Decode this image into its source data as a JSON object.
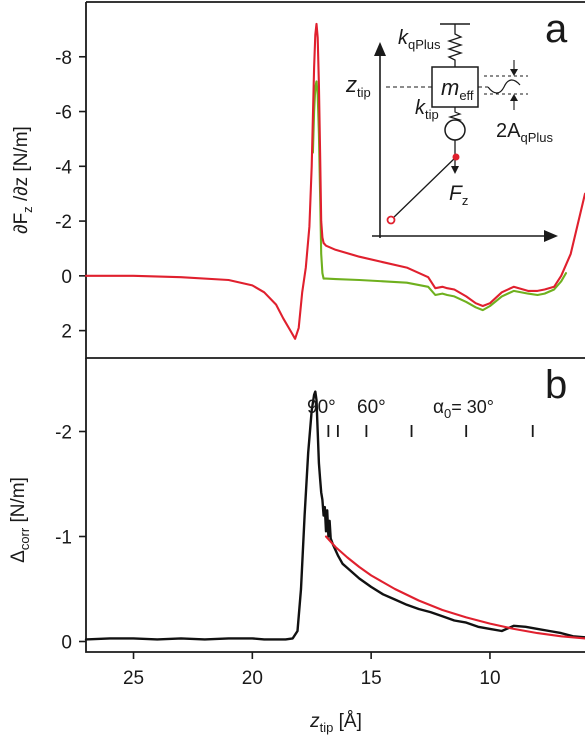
{
  "colors": {
    "red": "#e0202e",
    "green": "#6fb01e",
    "black": "#111111",
    "axis": "#1a1a1a"
  },
  "chart_data": [
    {
      "panel": "a",
      "type": "line",
      "ylabel_parts": {
        "p1": "∂F",
        "p1sub": "z",
        "p2": " /∂z [N/m]"
      },
      "xlim": [
        27,
        6
      ],
      "ylim": [
        3,
        -10
      ],
      "yticks": [
        2,
        0,
        -2,
        -4,
        -6,
        -8
      ],
      "ytick_labels": [
        "2",
        "0",
        "-2",
        "-4",
        "-6",
        "-8"
      ],
      "series": [
        {
          "color": "red",
          "x": [
            27,
            25,
            23,
            21,
            20,
            19.5,
            19,
            18.7,
            18.4,
            18.2,
            18.05,
            17.9,
            17.75,
            17.6,
            17.5,
            17.45,
            17.4,
            17.35,
            17.3,
            17.25,
            17.2,
            17.15,
            17.1,
            17.05,
            17.0,
            16.9,
            16.5,
            15.5,
            14.5,
            13.5,
            12.6,
            12.3,
            12.0,
            11.8,
            11.5,
            11.0,
            10.6,
            10.3,
            10.0,
            9.5,
            9.0,
            8.4,
            8.0,
            7.7,
            7.3,
            7.0,
            6.6,
            6.0
          ],
          "y": [
            0,
            0,
            0.05,
            0.15,
            0.35,
            0.6,
            1.05,
            1.55,
            2.0,
            2.3,
            1.9,
            0.6,
            -0.3,
            -1.8,
            -4.0,
            -5.8,
            -7.6,
            -8.8,
            -9.2,
            -8.7,
            -7.0,
            -4.5,
            -2.0,
            -1.4,
            -1.2,
            -1.1,
            -0.95,
            -0.7,
            -0.5,
            -0.3,
            0.05,
            0.45,
            0.4,
            0.45,
            0.5,
            0.75,
            1.0,
            1.1,
            1.0,
            0.6,
            0.4,
            0.55,
            0.55,
            0.5,
            0.4,
            0.0,
            -0.8,
            -3.0
          ]
        },
        {
          "color": "green",
          "x": [
            17.45,
            17.4,
            17.35,
            17.3,
            17.25,
            17.2,
            17.15,
            17.1,
            17.05,
            17.0,
            16.9,
            16.5,
            15.5,
            14.5,
            13.5,
            12.6,
            12.3,
            12.0,
            11.8,
            11.5,
            11.0,
            10.6,
            10.3,
            10.0,
            9.5,
            9.0,
            8.4,
            8.0,
            7.7,
            7.3,
            7.0,
            6.8
          ],
          "y": [
            -4.5,
            -6.0,
            -6.9,
            -7.1,
            -6.6,
            -5.2,
            -3.0,
            -0.8,
            -0.1,
            0.1,
            0.1,
            0.12,
            0.15,
            0.2,
            0.25,
            0.4,
            0.7,
            0.65,
            0.7,
            0.75,
            0.95,
            1.15,
            1.25,
            1.1,
            0.75,
            0.55,
            0.65,
            0.7,
            0.65,
            0.5,
            0.2,
            -0.1
          ]
        }
      ]
    },
    {
      "panel": "b",
      "type": "line",
      "ylabel_parts": {
        "p1": "Δ",
        "p1sub": "corr",
        "p2": " [N/m]"
      },
      "xlabel_parts": {
        "p1": "z",
        "p1sub": "tip",
        "p2": " [Å]"
      },
      "xlim": [
        27,
        6
      ],
      "ylim": [
        0.1,
        -2.7
      ],
      "yticks": [
        0,
        -1,
        -2
      ],
      "ytick_labels": [
        "0",
        "-1",
        "-2"
      ],
      "xticks": [
        25,
        20,
        15,
        10
      ],
      "xtick_labels": [
        "25",
        "20",
        "15",
        "10"
      ],
      "series": [
        {
          "color": "black",
          "x": [
            27,
            26,
            25,
            24,
            23,
            22,
            21,
            20,
            19.5,
            19,
            18.6,
            18.3,
            18.1,
            17.95,
            17.8,
            17.65,
            17.5,
            17.4,
            17.35,
            17.3,
            17.25,
            17.2,
            17.15,
            17.1,
            17.05,
            17.0,
            16.95,
            16.9,
            16.85,
            16.8,
            16.75,
            16.7,
            16.6,
            16.4,
            16.2,
            16.0,
            15.5,
            15.0,
            14.5,
            14.0,
            13.5,
            13.0,
            12.5,
            12.0,
            11.5,
            11.0,
            10.5,
            10.0,
            9.5,
            9.0,
            8.5,
            8.0,
            7.5,
            7.0,
            6.5,
            6.0
          ],
          "y": [
            -0.02,
            -0.03,
            -0.03,
            -0.02,
            -0.03,
            -0.02,
            -0.03,
            -0.03,
            -0.02,
            -0.02,
            -0.02,
            -0.03,
            -0.1,
            -0.5,
            -1.2,
            -1.8,
            -2.2,
            -2.35,
            -2.38,
            -2.3,
            -2.0,
            -1.7,
            -1.55,
            -1.42,
            -1.35,
            -1.2,
            -1.28,
            -1.05,
            -1.25,
            -1.0,
            -1.15,
            -0.98,
            -0.92,
            -0.82,
            -0.74,
            -0.7,
            -0.6,
            -0.52,
            -0.45,
            -0.4,
            -0.35,
            -0.31,
            -0.28,
            -0.24,
            -0.2,
            -0.18,
            -0.14,
            -0.12,
            -0.1,
            -0.15,
            -0.14,
            -0.12,
            -0.1,
            -0.08,
            -0.05,
            -0.04
          ]
        },
        {
          "color": "red",
          "x": [
            16.9,
            16.5,
            16.0,
            15.5,
            15.0,
            14.0,
            13.0,
            12.0,
            11.0,
            10.0,
            9.0,
            8.0,
            7.0,
            6.0
          ],
          "y": [
            -1.0,
            -0.9,
            -0.8,
            -0.71,
            -0.63,
            -0.5,
            -0.39,
            -0.3,
            -0.23,
            -0.17,
            -0.12,
            -0.08,
            -0.05,
            -0.03
          ]
        }
      ],
      "angle_marks": {
        "x": [
          16.8,
          16.4,
          15.2,
          13.3,
          11.0,
          8.2
        ],
        "label_90": "90°",
        "label_60": "60°",
        "alpha_main": "α",
        "alpha_sub": "0",
        "alpha_rest": "= 30°"
      }
    }
  ],
  "inset": {
    "k_qplus": {
      "main": "k",
      "sub": "qPlus"
    },
    "m_eff": {
      "main": "m",
      "sub": "eff"
    },
    "z_tip": {
      "main": "z",
      "sub": "tip"
    },
    "k_tip": {
      "main": "k",
      "sub": "tip"
    },
    "amp": {
      "main": "2A",
      "sub": "qPlus"
    },
    "force": {
      "main": "F",
      "sub": "z"
    }
  },
  "panel_letters": {
    "a": "a",
    "b": "b"
  }
}
